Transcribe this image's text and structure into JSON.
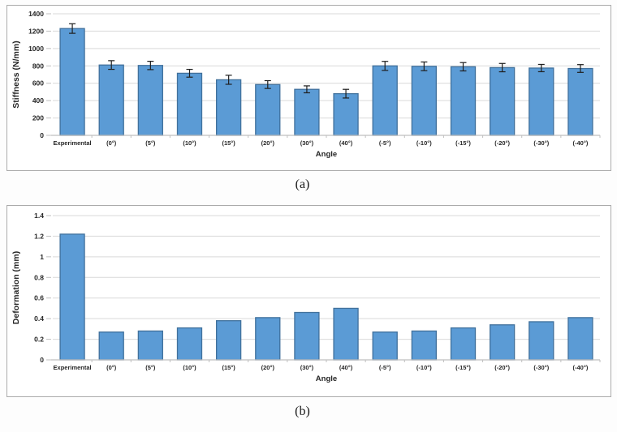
{
  "figure": {
    "caption_a": "(a)",
    "caption_b": "(b)"
  },
  "colors": {
    "bar_fill": "#5b9bd5",
    "bar_border": "#41719c",
    "gridline": "#d9d9d9",
    "axis_line": "#bfbfbf",
    "tick_text": "#262626",
    "error_bar": "#1f1f1f",
    "panel_border": "#ababab"
  },
  "chart_data": [
    {
      "type": "bar",
      "panel": "a",
      "ylabel": "Stiffness (N/mm)",
      "xlabel": "Angle",
      "categories": [
        "Experimental",
        "(0°)",
        "(5°)",
        "(10°)",
        "(15°)",
        "(20°)",
        "(30°)",
        "(40°)",
        "(-5°)",
        "(-10°)",
        "(-15°)",
        "(-20°)",
        "(-30°)",
        "(-40°)"
      ],
      "values": [
        1230,
        810,
        805,
        715,
        640,
        585,
        530,
        480,
        800,
        795,
        790,
        780,
        775,
        770
      ],
      "errors": [
        55,
        50,
        48,
        45,
        52,
        45,
        40,
        50,
        52,
        50,
        48,
        48,
        42,
        45
      ],
      "ylim": [
        0,
        1400
      ],
      "ytick_labels": [
        "0",
        "200",
        "400",
        "600",
        "800",
        "1000",
        "1200",
        "1400"
      ],
      "grid": true,
      "legend": "none"
    },
    {
      "type": "bar",
      "panel": "b",
      "ylabel": "Deformation (mm)",
      "xlabel": "Angle",
      "categories": [
        "Experimental",
        "(0°)",
        "(5°)",
        "(10°)",
        "(15°)",
        "(20°)",
        "(30°)",
        "(40°)",
        "(-5°)",
        "(-10°)",
        "(-15°)",
        "(-20°)",
        "(-30°)",
        "(-40°)"
      ],
      "values": [
        1.22,
        0.27,
        0.28,
        0.31,
        0.38,
        0.41,
        0.46,
        0.5,
        0.27,
        0.28,
        0.31,
        0.34,
        0.37,
        0.41
      ],
      "errors": [],
      "ylim": [
        0,
        1.4
      ],
      "ytick_labels": [
        "0",
        "0.2",
        "0.4",
        "0.6",
        "0.8",
        "1",
        "1.2",
        "1.4"
      ],
      "grid": true,
      "legend": "none"
    }
  ]
}
